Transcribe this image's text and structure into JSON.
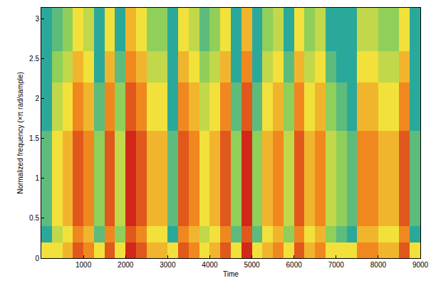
{
  "chart_data": {
    "type": "heatmap",
    "x_label": "Time",
    "y_label": "Normalized frequency (×π rad/sample)",
    "x": [
      125,
      375,
      625,
      875,
      1125,
      1375,
      1625,
      1875,
      2125,
      2375,
      2625,
      2875,
      3125,
      3375,
      3625,
      3875,
      4125,
      4375,
      4625,
      4875,
      5125,
      5375,
      5625,
      5875,
      6125,
      6375,
      6625,
      6875,
      7125,
      7375,
      7625,
      7875,
      8125,
      8375,
      8625,
      8875
    ],
    "y": [
      0.1,
      0.3,
      0.5,
      0.7,
      0.9,
      1.1,
      1.3,
      1.5,
      1.7,
      1.9,
      2.1,
      2.3,
      2.5,
      2.7,
      2.9,
      3.1
    ],
    "z": [
      [
        5,
        5,
        6,
        8,
        7,
        5,
        8,
        5,
        9,
        8,
        6,
        6,
        5,
        8,
        7,
        5,
        6,
        8,
        5,
        9,
        5,
        6,
        7,
        5,
        8,
        6,
        7,
        5,
        5,
        5,
        7,
        7,
        6,
        6,
        8,
        5
      ],
      [
        1,
        4,
        5,
        7,
        6,
        2,
        7,
        3,
        8,
        7,
        5,
        5,
        1,
        7,
        6,
        4,
        5,
        7,
        2,
        8,
        2,
        5,
        6,
        3,
        7,
        5,
        6,
        3,
        2,
        1,
        6,
        6,
        5,
        5,
        7,
        1
      ],
      [
        2,
        5,
        6,
        8,
        7,
        3,
        8,
        4,
        9,
        8,
        6,
        6,
        2,
        8,
        7,
        5,
        6,
        8,
        3,
        9,
        3,
        6,
        7,
        4,
        8,
        6,
        7,
        4,
        3,
        2,
        7,
        7,
        6,
        6,
        8,
        2
      ],
      [
        2,
        5,
        6,
        8,
        7,
        3,
        8,
        4,
        9,
        8,
        6,
        6,
        2,
        8,
        7,
        5,
        6,
        8,
        3,
        9,
        3,
        6,
        7,
        4,
        8,
        6,
        7,
        4,
        3,
        2,
        7,
        7,
        6,
        6,
        8,
        2
      ],
      [
        2,
        5,
        6,
        8,
        7,
        3,
        8,
        4,
        9,
        8,
        6,
        6,
        2,
        8,
        7,
        5,
        6,
        8,
        3,
        9,
        3,
        6,
        7,
        4,
        8,
        6,
        7,
        4,
        3,
        2,
        7,
        7,
        6,
        6,
        8,
        2
      ],
      [
        2,
        5,
        6,
        8,
        7,
        3,
        8,
        4,
        9,
        8,
        6,
        6,
        2,
        8,
        7,
        5,
        6,
        8,
        3,
        9,
        3,
        6,
        7,
        4,
        8,
        6,
        7,
        4,
        3,
        2,
        7,
        7,
        6,
        6,
        8,
        2
      ],
      [
        2,
        5,
        6,
        8,
        7,
        3,
        8,
        4,
        9,
        8,
        6,
        6,
        2,
        8,
        7,
        5,
        6,
        8,
        3,
        9,
        3,
        6,
        7,
        4,
        8,
        6,
        7,
        4,
        3,
        2,
        7,
        7,
        6,
        6,
        8,
        2
      ],
      [
        2,
        5,
        6,
        8,
        7,
        3,
        8,
        4,
        9,
        8,
        6,
        6,
        2,
        8,
        7,
        5,
        6,
        8,
        3,
        9,
        3,
        6,
        7,
        4,
        8,
        6,
        7,
        4,
        3,
        2,
        7,
        7,
        6,
        6,
        8,
        2
      ],
      [
        1,
        4,
        5,
        7,
        6,
        2,
        7,
        3,
        8,
        7,
        5,
        5,
        1,
        7,
        6,
        4,
        5,
        7,
        2,
        8,
        2,
        5,
        6,
        3,
        7,
        5,
        6,
        3,
        2,
        1,
        6,
        6,
        5,
        5,
        7,
        1
      ],
      [
        1,
        4,
        5,
        7,
        6,
        2,
        7,
        3,
        8,
        7,
        5,
        5,
        1,
        7,
        6,
        4,
        5,
        7,
        2,
        8,
        2,
        5,
        6,
        3,
        7,
        5,
        6,
        3,
        2,
        1,
        6,
        6,
        5,
        5,
        7,
        1
      ],
      [
        1,
        4,
        5,
        7,
        6,
        2,
        7,
        3,
        8,
        7,
        5,
        5,
        1,
        7,
        6,
        4,
        5,
        7,
        2,
        8,
        2,
        5,
        6,
        3,
        7,
        5,
        6,
        3,
        2,
        1,
        6,
        6,
        5,
        5,
        7,
        1
      ],
      [
        1,
        3,
        4,
        6,
        5,
        1,
        6,
        2,
        7,
        6,
        4,
        4,
        1,
        6,
        5,
        3,
        4,
        6,
        1,
        7,
        1,
        4,
        5,
        2,
        6,
        4,
        5,
        2,
        1,
        1,
        5,
        5,
        4,
        4,
        6,
        1
      ],
      [
        1,
        3,
        4,
        6,
        5,
        1,
        6,
        2,
        7,
        6,
        4,
        4,
        1,
        6,
        5,
        3,
        4,
        6,
        1,
        7,
        1,
        4,
        5,
        2,
        6,
        4,
        5,
        2,
        1,
        1,
        5,
        5,
        4,
        4,
        6,
        1
      ],
      [
        1,
        2,
        3,
        5,
        4,
        1,
        5,
        1,
        6,
        5,
        3,
        3,
        1,
        5,
        4,
        2,
        3,
        5,
        1,
        6,
        1,
        3,
        4,
        1,
        5,
        3,
        4,
        1,
        1,
        1,
        4,
        4,
        3,
        3,
        5,
        1
      ],
      [
        1,
        2,
        3,
        5,
        4,
        1,
        5,
        1,
        6,
        5,
        3,
        3,
        1,
        5,
        4,
        2,
        3,
        5,
        1,
        6,
        1,
        3,
        4,
        1,
        5,
        3,
        4,
        1,
        1,
        1,
        4,
        4,
        3,
        3,
        5,
        1
      ],
      [
        1,
        2,
        3,
        5,
        4,
        1,
        5,
        1,
        6,
        5,
        3,
        3,
        1,
        5,
        4,
        2,
        3,
        5,
        1,
        6,
        1,
        3,
        4,
        1,
        5,
        3,
        4,
        1,
        1,
        1,
        4,
        4,
        3,
        3,
        5,
        1
      ]
    ],
    "zlim": [
      1,
      9
    ],
    "xlim": [
      0,
      9000
    ],
    "ylim": [
      0,
      3.14
    ],
    "xticks": [
      1000,
      2000,
      3000,
      4000,
      5000,
      6000,
      7000,
      8000,
      9000
    ],
    "yticks": [
      0,
      0.5,
      1,
      1.5,
      2,
      2.5,
      3
    ]
  }
}
